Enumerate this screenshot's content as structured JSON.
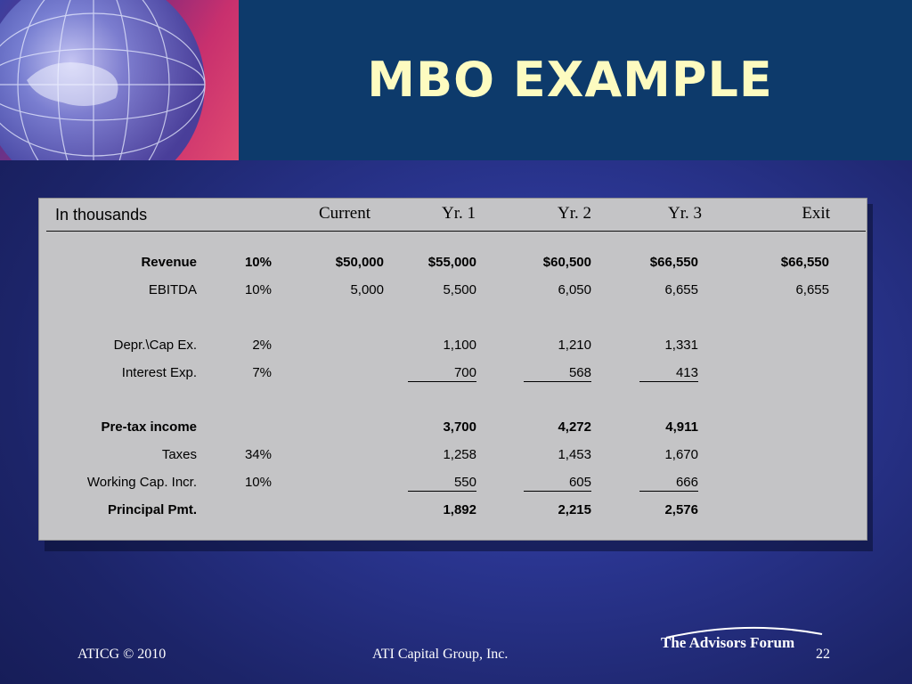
{
  "slide": {
    "title": "MBO EXAMPLE",
    "colors": {
      "title": "#fdfbc0",
      "header_bg": "#0d3a6b",
      "panel": "#c4c4c6"
    }
  },
  "table": {
    "units_label": "In thousands",
    "columns": [
      "Current",
      "Yr. 1",
      "Yr. 2",
      "Yr. 3",
      "Exit"
    ],
    "rows": [
      {
        "label": "Revenue",
        "rate": "10%",
        "current": "$50,000",
        "yr1": "$55,000",
        "yr2": "$60,500",
        "yr3": "$66,550",
        "exit": "$66,550",
        "bold": true
      },
      {
        "label": "EBITDA",
        "rate": "10%",
        "current": "5,000",
        "yr1": "5,500",
        "yr2": "6,050",
        "yr3": "6,655",
        "exit": "6,655"
      },
      {
        "label": "Depr.\\Cap Ex.",
        "rate": "2%",
        "yr1": "1,100",
        "yr2": "1,210",
        "yr3": "1,331"
      },
      {
        "label": "Interest Exp.",
        "rate": "7%",
        "yr1": "700",
        "yr2": "568",
        "yr3": "413",
        "underlined": true
      },
      {
        "label": "Pre-tax income",
        "yr1": "3,700",
        "yr2": "4,272",
        "yr3": "4,911",
        "bold": true
      },
      {
        "label": "Taxes",
        "rate": "34%",
        "yr1": "1,258",
        "yr2": "1,453",
        "yr3": "1,670"
      },
      {
        "label": "Working Cap. Incr.",
        "rate": "10%",
        "yr1": "550",
        "yr2": "605",
        "yr3": "666",
        "underlined": true
      },
      {
        "label": "Principal Pmt.",
        "yr1": "1,892",
        "yr2": "2,215",
        "yr3": "2,576",
        "bold": true
      }
    ]
  },
  "footer": {
    "left": "ATICG © 2010",
    "center": "ATI Capital Group, Inc.",
    "logo": "The Advisors Forum",
    "page_number": "22"
  }
}
